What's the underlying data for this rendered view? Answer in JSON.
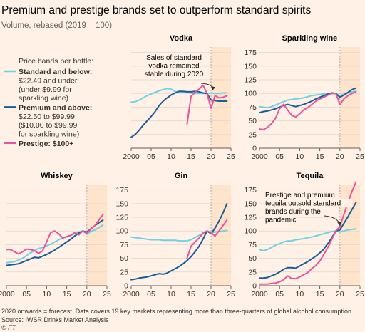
{
  "header": {
    "title": "Premium and prestige brands set to outperform standard spirits",
    "subtitle": "Volume, rebased (2019 = 100)"
  },
  "legend": {
    "heading": "Price bands per bottle:",
    "items": [
      {
        "name": "Standard and below:",
        "lines": [
          "$22.49 and under",
          "(under $9.99 for",
          "sparkling wine)"
        ],
        "color": "#6fd1e3"
      },
      {
        "name": "Premium and above:",
        "lines": [
          "$22.50 to $99.99",
          "($10.00 to $99.99",
          "for sparkling wine)"
        ],
        "color": "#1a5c99"
      },
      {
        "name": "Prestige: $100+",
        "lines": [],
        "color": "#e8559a"
      }
    ]
  },
  "footer": {
    "note": "2020 onwards = forecast. Data covers 19 key markets representing more than three-quarters of global alcohol consumption",
    "source": "Source: IWSR Drinks Market Analysis",
    "credit": "© FT"
  },
  "chart_data": [
    {
      "type": "line",
      "title": "Vodka",
      "x_ticks": [
        2000,
        2005,
        2010,
        2015,
        2020,
        2025
      ],
      "x_tick_labels": [
        "2000",
        "05",
        "10",
        "15",
        "20",
        "25"
      ],
      "y_ticks": [
        0,
        25,
        50,
        75,
        100,
        125,
        150,
        175
      ],
      "ylim": [
        0,
        185
      ],
      "xlim": [
        2000,
        2025
      ],
      "forecast_from": 2020,
      "ytick_labels_visible": false,
      "annotation": {
        "lines": [
          "Sales of standard",
          "vodka remained",
          "stable during 2020"
        ],
        "arrow_to": [
          2020,
          101
        ]
      },
      "series": [
        {
          "name": "Standard and below",
          "color": "#6fd1e3",
          "x": [
            2000,
            2001,
            2002,
            2003,
            2004,
            2005,
            2006,
            2007,
            2008,
            2009,
            2010,
            2011,
            2012,
            2013,
            2014,
            2015,
            2016,
            2017,
            2018,
            2019,
            2020,
            2021,
            2022,
            2023,
            2024
          ],
          "y": [
            84,
            85,
            88,
            92,
            96,
            99,
            102,
            105,
            107,
            109,
            108,
            104,
            102,
            102,
            102,
            101,
            100,
            100,
            100,
            100,
            101,
            100,
            100,
            101,
            101
          ]
        },
        {
          "name": "Premium and above",
          "color": "#1a5c99",
          "x": [
            2000,
            2001,
            2002,
            2003,
            2004,
            2005,
            2006,
            2007,
            2008,
            2009,
            2010,
            2011,
            2012,
            2013,
            2014,
            2015,
            2016,
            2017,
            2018,
            2019,
            2020,
            2021,
            2022,
            2023,
            2024
          ],
          "y": [
            20,
            25,
            33,
            42,
            50,
            58,
            67,
            78,
            86,
            92,
            97,
            101,
            104,
            104,
            103,
            103,
            104,
            103,
            101,
            100,
            88,
            87,
            86,
            86,
            86
          ]
        },
        {
          "name": "Prestige",
          "color": "#e8559a",
          "x": [
            2014,
            2015,
            2016,
            2017,
            2018,
            2019,
            2020,
            2021,
            2022,
            2023,
            2024
          ],
          "y": [
            44,
            95,
            102,
            108,
            115,
            100,
            73,
            96,
            92,
            93,
            96
          ]
        }
      ]
    },
    {
      "type": "line",
      "title": "Sparkling wine",
      "x_ticks": [
        2000,
        2005,
        2010,
        2015,
        2020,
        2025
      ],
      "x_tick_labels": [
        "2000",
        "05",
        "10",
        "15",
        "20",
        "25"
      ],
      "y_ticks": [
        0,
        25,
        50,
        75,
        100,
        125,
        150,
        175
      ],
      "ylim": [
        0,
        185
      ],
      "xlim": [
        2000,
        2025
      ],
      "forecast_from": 2020,
      "ytick_labels_visible": true,
      "series": [
        {
          "name": "Standard and below",
          "color": "#6fd1e3",
          "x": [
            2000,
            2001,
            2002,
            2003,
            2004,
            2005,
            2006,
            2007,
            2008,
            2009,
            2010,
            2011,
            2012,
            2013,
            2014,
            2015,
            2016,
            2017,
            2018,
            2019,
            2020,
            2021,
            2022,
            2023,
            2024
          ],
          "y": [
            76,
            75,
            74,
            76,
            79,
            82,
            85,
            88,
            89,
            90,
            91,
            92,
            94,
            96,
            97,
            98,
            99,
            100,
            100,
            100,
            95,
            99,
            101,
            103,
            104
          ]
        },
        {
          "name": "Premium and above",
          "color": "#1a5c99",
          "x": [
            2000,
            2001,
            2002,
            2003,
            2004,
            2005,
            2006,
            2007,
            2008,
            2009,
            2010,
            2011,
            2012,
            2013,
            2014,
            2015,
            2016,
            2017,
            2018,
            2019,
            2020,
            2021,
            2022,
            2023,
            2024
          ],
          "y": [
            65,
            67,
            68,
            70,
            72,
            75,
            78,
            80,
            78,
            76,
            78,
            80,
            83,
            86,
            90,
            93,
            96,
            99,
            101,
            100,
            93,
            97,
            102,
            107,
            110
          ]
        },
        {
          "name": "Prestige",
          "color": "#e8559a",
          "x": [
            2000,
            2001,
            2002,
            2003,
            2004,
            2005,
            2006,
            2007,
            2008,
            2009,
            2010,
            2011,
            2012,
            2013,
            2014,
            2015,
            2016,
            2017,
            2018,
            2019,
            2020,
            2021,
            2022,
            2023,
            2024
          ],
          "y": [
            35,
            34,
            38,
            45,
            55,
            72,
            80,
            70,
            60,
            57,
            63,
            70,
            74,
            80,
            86,
            90,
            93,
            97,
            100,
            100,
            80,
            90,
            96,
            100,
            103
          ]
        }
      ]
    },
    {
      "type": "line",
      "title": "Whiskey",
      "x_ticks": [
        2000,
        2005,
        2010,
        2015,
        2020,
        2025
      ],
      "x_tick_labels": [
        "2000",
        "05",
        "10",
        "15",
        "20",
        "25"
      ],
      "y_ticks": [
        0,
        25,
        50,
        75,
        100,
        125,
        150,
        175
      ],
      "ylim": [
        0,
        185
      ],
      "xlim": [
        2000,
        2025
      ],
      "forecast_from": 2020,
      "ytick_labels_visible": false,
      "series": [
        {
          "name": "Standard and below",
          "color": "#6fd1e3",
          "x": [
            2000,
            2001,
            2002,
            2003,
            2004,
            2005,
            2006,
            2007,
            2008,
            2009,
            2010,
            2011,
            2012,
            2013,
            2014,
            2015,
            2016,
            2017,
            2018,
            2019,
            2020,
            2021,
            2022,
            2023,
            2024
          ],
          "y": [
            42,
            43,
            44,
            47,
            50,
            55,
            60,
            64,
            68,
            70,
            73,
            76,
            80,
            84,
            87,
            89,
            92,
            95,
            98,
            100,
            94,
            99,
            102,
            106,
            111
          ]
        },
        {
          "name": "Premium and above",
          "color": "#1a5c99",
          "x": [
            2000,
            2001,
            2002,
            2003,
            2004,
            2005,
            2006,
            2007,
            2008,
            2009,
            2010,
            2011,
            2012,
            2013,
            2014,
            2015,
            2016,
            2017,
            2018,
            2019,
            2020,
            2021,
            2022,
            2023,
            2024
          ],
          "y": [
            37,
            38,
            39,
            40,
            43,
            46,
            49,
            52,
            51,
            54,
            57,
            61,
            65,
            70,
            75,
            80,
            85,
            91,
            96,
            100,
            98,
            104,
            110,
            115,
            120
          ]
        },
        {
          "name": "Prestige",
          "color": "#e8559a",
          "x": [
            2000,
            2001,
            2002,
            2003,
            2004,
            2005,
            2006,
            2007,
            2008,
            2009,
            2010,
            2011,
            2012,
            2013,
            2014,
            2015,
            2016,
            2017,
            2018,
            2019,
            2020,
            2021,
            2022,
            2023,
            2024
          ],
          "y": [
            66,
            66,
            62,
            58,
            62,
            67,
            66,
            64,
            59,
            64,
            80,
            97,
            100,
            95,
            87,
            90,
            92,
            97,
            93,
            100,
            96,
            103,
            110,
            120,
            130
          ]
        }
      ]
    },
    {
      "type": "line",
      "title": "Gin",
      "x_ticks": [
        2000,
        2005,
        2010,
        2015,
        2020,
        2025
      ],
      "x_tick_labels": [
        "2000",
        "05",
        "10",
        "15",
        "20",
        "25"
      ],
      "y_ticks": [
        0,
        25,
        50,
        75,
        100,
        125,
        150,
        175
      ],
      "ylim": [
        0,
        185
      ],
      "xlim": [
        2000,
        2025
      ],
      "forecast_from": 2020,
      "ytick_labels_visible": true,
      "series": [
        {
          "name": "Standard and below",
          "color": "#6fd1e3",
          "x": [
            2000,
            2001,
            2002,
            2003,
            2004,
            2005,
            2006,
            2007,
            2008,
            2009,
            2010,
            2011,
            2012,
            2013,
            2014,
            2015,
            2016,
            2017,
            2018,
            2019,
            2020,
            2021,
            2022,
            2023,
            2024
          ],
          "y": [
            89,
            88,
            87,
            86,
            85,
            84,
            84,
            84,
            83,
            83,
            83,
            83,
            82,
            82,
            82,
            84,
            88,
            92,
            96,
            100,
            97,
            98,
            99,
            100,
            101
          ]
        },
        {
          "name": "Premium and above",
          "color": "#1a5c99",
          "x": [
            2000,
            2001,
            2002,
            2003,
            2004,
            2005,
            2006,
            2007,
            2008,
            2009,
            2010,
            2011,
            2012,
            2013,
            2014,
            2015,
            2016,
            2017,
            2018,
            2019,
            2020,
            2021,
            2022,
            2023,
            2024
          ],
          "y": [
            11,
            12,
            14,
            15,
            16,
            18,
            20,
            22,
            21,
            23,
            27,
            31,
            35,
            40,
            46,
            53,
            62,
            72,
            85,
            100,
            95,
            105,
            118,
            133,
            150
          ]
        },
        {
          "name": "Prestige",
          "color": "#e8559a",
          "x": [
            2014,
            2015,
            2016,
            2017,
            2018,
            2019,
            2020,
            2021,
            2022,
            2023,
            2024
          ],
          "y": [
            50,
            72,
            80,
            87,
            96,
            100,
            97,
            91,
            100,
            110,
            120
          ]
        }
      ]
    },
    {
      "type": "line",
      "title": "Tequila",
      "x_ticks": [
        2000,
        2005,
        2010,
        2015,
        2020,
        2025
      ],
      "x_tick_labels": [
        "2000",
        "05",
        "10",
        "15",
        "20",
        "25"
      ],
      "y_ticks": [
        0,
        25,
        50,
        75,
        100,
        125,
        150,
        175
      ],
      "ylim": [
        0,
        185
      ],
      "xlim": [
        2000,
        2025
      ],
      "forecast_from": 2020,
      "ytick_labels_visible": true,
      "annotation": {
        "lines": [
          "Prestige and premium",
          "tequila outsold standard",
          "brands during the",
          "pandemic"
        ],
        "arrow_to": [
          2020,
          104
        ]
      },
      "series": [
        {
          "name": "Standard and below",
          "color": "#6fd1e3",
          "x": [
            2000,
            2001,
            2002,
            2003,
            2004,
            2005,
            2006,
            2007,
            2008,
            2009,
            2010,
            2011,
            2012,
            2013,
            2014,
            2015,
            2016,
            2017,
            2018,
            2019,
            2020,
            2021,
            2022,
            2023,
            2024
          ],
          "y": [
            66,
            64,
            66,
            70,
            74,
            77,
            80,
            82,
            82,
            84,
            85,
            86,
            88,
            89,
            91,
            93,
            95,
            97,
            99,
            100,
            98,
            100,
            102,
            103,
            104
          ]
        },
        {
          "name": "Premium and above",
          "color": "#1a5c99",
          "x": [
            2000,
            2001,
            2002,
            2003,
            2004,
            2005,
            2006,
            2007,
            2008,
            2009,
            2010,
            2011,
            2012,
            2013,
            2014,
            2015,
            2016,
            2017,
            2018,
            2019,
            2020,
            2021,
            2022,
            2023,
            2024
          ],
          "y": [
            14,
            14,
            15,
            18,
            21,
            25,
            30,
            33,
            33,
            32,
            36,
            40,
            44,
            49,
            54,
            60,
            67,
            77,
            88,
            100,
            102,
            114,
            126,
            139,
            152
          ]
        },
        {
          "name": "Prestige",
          "color": "#e8559a",
          "x": [
            2000,
            2001,
            2002,
            2003,
            2004,
            2005,
            2006,
            2007,
            2008,
            2009,
            2010,
            2011,
            2012,
            2013,
            2014,
            2015,
            2016,
            2017,
            2018,
            2019,
            2020,
            2021,
            2022,
            2023,
            2024
          ],
          "y": [
            3,
            3,
            3,
            4,
            5,
            7,
            11,
            18,
            13,
            13,
            16,
            20,
            24,
            31,
            37,
            45,
            57,
            70,
            85,
            100,
            108,
            130,
            152,
            172,
            190
          ]
        }
      ]
    }
  ]
}
